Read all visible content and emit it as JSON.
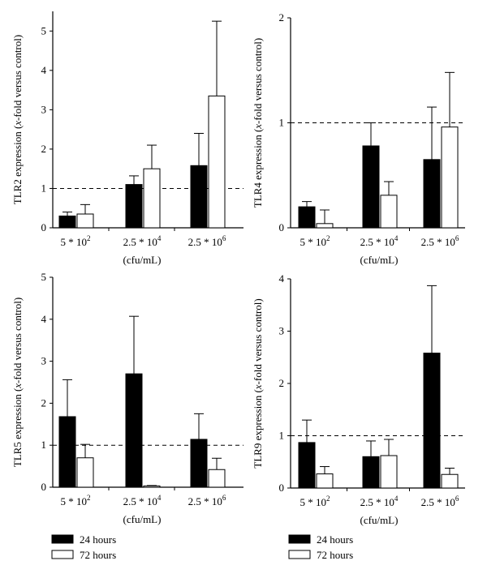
{
  "figure": {
    "legend": [
      {
        "label": "24 hours",
        "color": "#000000"
      },
      {
        "label": "72 hours",
        "color": "#ffffff"
      }
    ],
    "x_unit": "(cfu/mL)"
  },
  "chart_data": [
    {
      "type": "bar",
      "ylabel_pre": "TLR2 expression (",
      "ylabel_it": "x",
      "ylabel_post": "-fold versus control)",
      "categories": [
        {
          "base": "5 * 10",
          "sup": "2"
        },
        {
          "base": "2.5 * 10",
          "sup": "4"
        },
        {
          "base": "2.5 * 10",
          "sup": "6"
        }
      ],
      "ylim": [
        0,
        5.5
      ],
      "yticks": [
        0,
        1,
        2,
        3,
        4,
        5
      ],
      "reference_line": 1,
      "show_unit": true,
      "series": [
        {
          "name": "24 hours",
          "values": [
            0.3,
            1.1,
            1.58
          ],
          "errors": [
            0.1,
            0.22,
            0.82
          ]
        },
        {
          "name": "72 hours",
          "values": [
            0.35,
            1.5,
            3.35
          ],
          "errors": [
            0.24,
            0.6,
            1.9
          ]
        }
      ]
    },
    {
      "type": "bar",
      "ylabel_pre": "TLR4 expression (",
      "ylabel_it": "x",
      "ylabel_post": "-fold versus control)",
      "categories": [
        {
          "base": "5 * 10",
          "sup": "2"
        },
        {
          "base": "2.5 * 10",
          "sup": "4"
        },
        {
          "base": "2.5 * 10",
          "sup": "6"
        }
      ],
      "ylim": [
        0,
        2
      ],
      "yticks": [
        0,
        1,
        2
      ],
      "reference_line": 1,
      "show_unit": true,
      "series": [
        {
          "name": "24 hours",
          "values": [
            0.2,
            0.78,
            0.65
          ],
          "errors": [
            0.05,
            0.22,
            0.5
          ]
        },
        {
          "name": "72 hours",
          "values": [
            0.04,
            0.31,
            0.96
          ],
          "errors": [
            0.13,
            0.13,
            0.52
          ]
        }
      ]
    },
    {
      "type": "bar",
      "ylabel_pre": "TLR5 expression (",
      "ylabel_it": "x",
      "ylabel_post": "-fold versus control)",
      "categories": [
        {
          "base": "5 * 10",
          "sup": "2"
        },
        {
          "base": "2.5 * 10",
          "sup": "4"
        },
        {
          "base": "2.5 * 10",
          "sup": "6"
        }
      ],
      "ylim": [
        0,
        5
      ],
      "yticks": [
        0,
        1,
        2,
        3,
        4,
        5
      ],
      "reference_line": 1,
      "show_unit": true,
      "series": [
        {
          "name": "24 hours",
          "values": [
            1.68,
            2.7,
            1.14
          ],
          "errors": [
            0.88,
            1.37,
            0.61
          ]
        },
        {
          "name": "72 hours",
          "values": [
            0.7,
            0.03,
            0.42
          ],
          "errors": [
            0.32,
            0.01,
            0.27
          ]
        }
      ]
    },
    {
      "type": "bar",
      "ylabel_pre": "TLR9 expression (",
      "ylabel_it": "x",
      "ylabel_post": "-fold versus control)",
      "categories": [
        {
          "base": "5 * 10",
          "sup": "2"
        },
        {
          "base": "2.5 * 10",
          "sup": "4"
        },
        {
          "base": "2.5 * 10",
          "sup": "6"
        }
      ],
      "ylim": [
        0,
        4
      ],
      "yticks": [
        0,
        1,
        2,
        3,
        4
      ],
      "reference_line": 1,
      "show_unit": true,
      "series": [
        {
          "name": "24 hours",
          "values": [
            0.87,
            0.6,
            2.58
          ],
          "errors": [
            0.43,
            0.3,
            1.29
          ]
        },
        {
          "name": "72 hours",
          "values": [
            0.27,
            0.62,
            0.26
          ],
          "errors": [
            0.14,
            0.31,
            0.12
          ]
        }
      ]
    }
  ]
}
